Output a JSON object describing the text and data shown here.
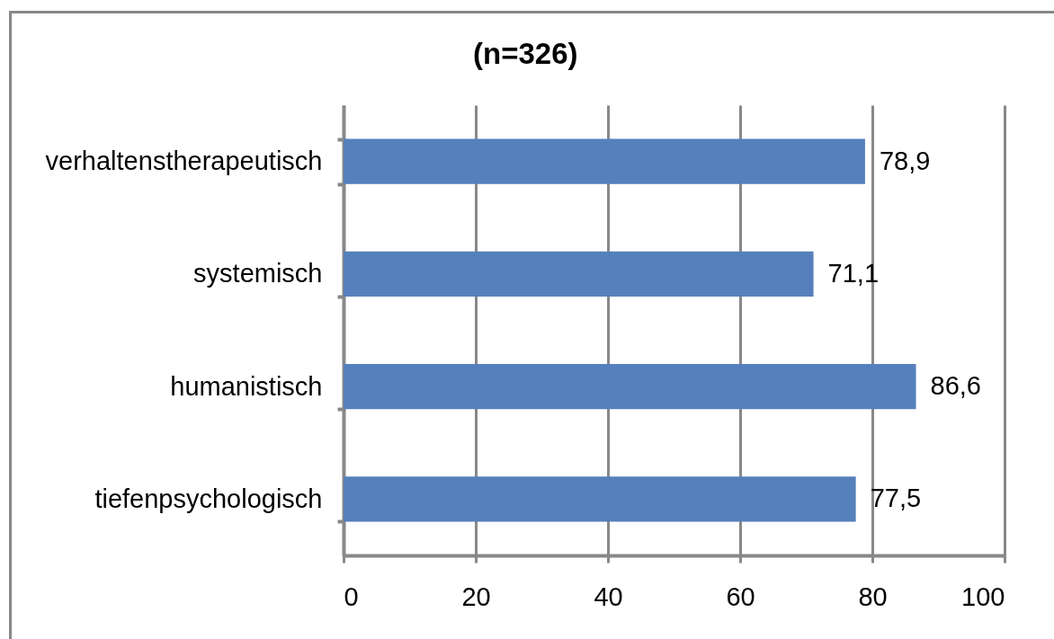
{
  "chart_data": {
    "type": "bar",
    "orientation": "horizontal",
    "title": "(n=326)",
    "categories": [
      "verhaltenstherapeutisch",
      "systemisch",
      "humanistisch",
      "tiefenpsychologisch"
    ],
    "values": [
      78.9,
      71.1,
      86.6,
      77.5
    ],
    "value_labels": [
      "78,9",
      "71,1",
      "86,6",
      "77,5"
    ],
    "color": "#5580bb",
    "xlim": [
      0,
      100
    ],
    "xticks": [
      0,
      20,
      40,
      60,
      80,
      100
    ],
    "grid": "x"
  }
}
